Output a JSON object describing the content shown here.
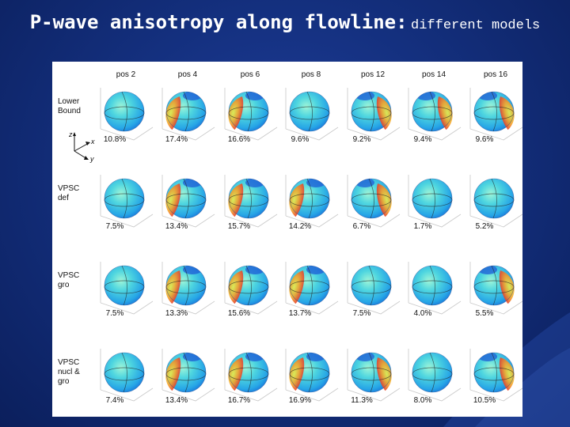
{
  "slide": {
    "title_main": "P-wave anisotropy along flowline",
    "title_colon": ":",
    "title_sub": "different models"
  },
  "figure": {
    "positions": [
      "pos 2",
      "pos 4",
      "pos 6",
      "pos 8",
      "pos 12",
      "pos 14",
      "pos 16"
    ],
    "models": [
      {
        "lines": [
          "Lower",
          "Bound"
        ],
        "values": [
          "10.8%",
          "17.4%",
          "16.6%",
          "9.6%",
          "9.2%",
          "9.4%",
          "9.6%"
        ]
      },
      {
        "lines": [
          "VPSC",
          "def"
        ],
        "values": [
          "7.5%",
          "13.4%",
          "15.7%",
          "14.2%",
          "6.7%",
          "1.7%",
          "5.2%"
        ]
      },
      {
        "lines": [
          "VPSC",
          "gro"
        ],
        "values": [
          "7.5%",
          "13.3%",
          "15.6%",
          "13.7%",
          "7.5%",
          "4.0%",
          "5.5%"
        ]
      },
      {
        "lines": [
          "VPSC",
          "nucl &",
          "gro"
        ],
        "values": [
          "7.4%",
          "13.4%",
          "16.7%",
          "16.9%",
          "11.3%",
          "8.0%",
          "10.5%"
        ]
      }
    ],
    "axes_labels": {
      "z": "z",
      "x": "x",
      "y": "y"
    }
  }
}
